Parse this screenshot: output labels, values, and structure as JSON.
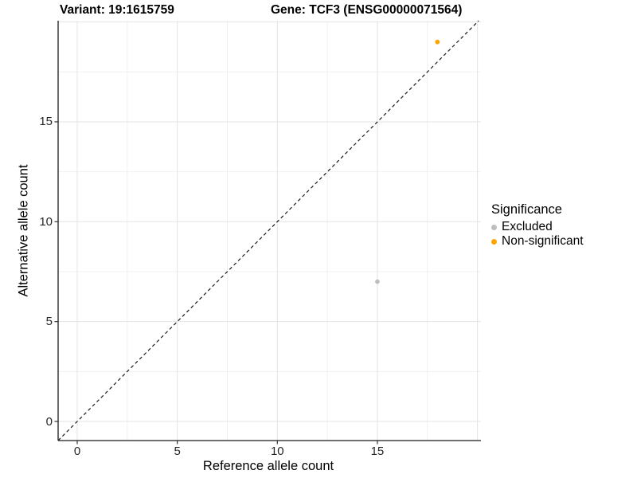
{
  "figure": {
    "title_left": "Variant: 19:1615759",
    "title_right": "Gene: TCF3 (ENSG00000071564)"
  },
  "chart_data": {
    "type": "scatter",
    "title": "Variant: 19:1615759 / Gene: TCF3 (ENSG00000071564)",
    "xlabel": "Reference allele count",
    "ylabel": "Alternative allele count",
    "x_ticks": [
      0,
      5,
      10,
      15
    ],
    "y_ticks": [
      0,
      5,
      10,
      15
    ],
    "x_major_grid": [
      0,
      5,
      10,
      15,
      20
    ],
    "y_major_grid": [
      0,
      5,
      10,
      15,
      20
    ],
    "x_minor_grid": [
      2.5,
      7.5,
      12.5,
      17.5
    ],
    "y_minor_grid": [
      2.5,
      7.5,
      12.5,
      17.5
    ],
    "xlim": [
      -0.96,
      20.17
    ],
    "ylim": [
      -0.96,
      20.06
    ],
    "grid": true,
    "identity_line": {
      "style": "dashed",
      "equation": "y = x"
    },
    "legend": {
      "title": "Significance",
      "position": "right"
    },
    "series": [
      {
        "name": "Excluded",
        "color": "#BEBEBE",
        "points": [
          {
            "x": 15,
            "y": 7
          }
        ]
      },
      {
        "name": "Non-significant",
        "color": "#FFA500",
        "points": [
          {
            "x": 18,
            "y": 19
          }
        ]
      }
    ]
  }
}
